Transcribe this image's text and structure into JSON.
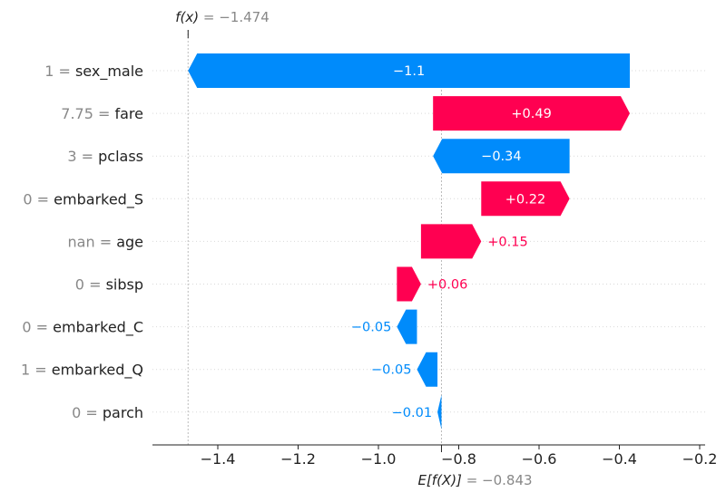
{
  "chart_data": {
    "type": "waterfall",
    "base_value": -0.843,
    "output_value": -1.474,
    "fx_label": "f(x)",
    "fx_value_text": "= −1.474",
    "ex_label": "E[f(X)]",
    "ex_value_text": "= −0.843",
    "features": [
      {
        "value": "1",
        "name": "sex_male",
        "contribution": -1.1,
        "label": "−1.1",
        "start": -0.374,
        "end": -1.474
      },
      {
        "value": "7.75",
        "name": "fare",
        "contribution": 0.49,
        "label": "+0.49",
        "start": -0.864,
        "end": -0.374
      },
      {
        "value": "3",
        "name": "pclass",
        "contribution": -0.34,
        "label": "−0.34",
        "start": -0.524,
        "end": -0.864
      },
      {
        "value": "0",
        "name": "embarked_S",
        "contribution": 0.22,
        "label": "+0.22",
        "start": -0.744,
        "end": -0.524
      },
      {
        "value": "nan",
        "name": "age",
        "contribution": 0.15,
        "label": "+0.15",
        "start": -0.894,
        "end": -0.744
      },
      {
        "value": "0",
        "name": "sibsp",
        "contribution": 0.06,
        "label": "+0.06",
        "start": -0.954,
        "end": -0.894
      },
      {
        "value": "0",
        "name": "embarked_C",
        "contribution": -0.05,
        "label": "−0.05",
        "start": -0.904,
        "end": -0.954
      },
      {
        "value": "1",
        "name": "embarked_Q",
        "contribution": -0.05,
        "label": "−0.05",
        "start": -0.853,
        "end": -0.904
      },
      {
        "value": "0",
        "name": "parch",
        "contribution": -0.01,
        "label": "−0.01",
        "start": -0.843,
        "end": -0.853
      }
    ],
    "xlim": [
      -1.55,
      -0.2
    ],
    "xticks": [
      -1.4,
      -1.2,
      -1.0,
      -0.8,
      -0.6,
      -0.4,
      -0.2
    ],
    "xtick_labels": [
      "−1.4",
      "−1.2",
      "−1.0",
      "−0.8",
      "−0.6",
      "−0.4",
      "−0.2"
    ],
    "grid": true,
    "colors": {
      "positive": "#ff0051",
      "negative": "#008bfb",
      "label_gray": "#888888",
      "text": "#222222",
      "grid": "#d9d9d9",
      "axis": "#222222"
    }
  }
}
